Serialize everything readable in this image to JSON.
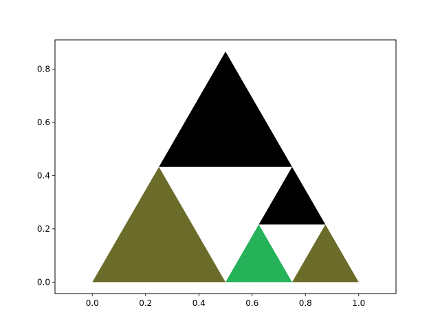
{
  "chart_data": {
    "type": "area",
    "title": "",
    "xlabel": "",
    "ylabel": "",
    "xlim": [
      -0.14,
      1.14
    ],
    "ylim": [
      -0.043,
      0.91
    ],
    "grid": false,
    "xticks": [
      0.0,
      0.2,
      0.4,
      0.6,
      0.8,
      1.0
    ],
    "xtick_labels": [
      "0.0",
      "0.2",
      "0.4",
      "0.6",
      "0.8",
      "1.0"
    ],
    "yticks": [
      0.0,
      0.2,
      0.4,
      0.6,
      0.8
    ],
    "ytick_labels": [
      "0.0",
      "0.2",
      "0.4",
      "0.6",
      "0.8"
    ],
    "triangles": [
      {
        "color": "#000000",
        "points": [
          [
            0.25,
            0.433
          ],
          [
            0.75,
            0.433
          ],
          [
            0.5,
            0.866
          ]
        ]
      },
      {
        "color": "#6b6b2a",
        "points": [
          [
            0.0,
            0.0
          ],
          [
            0.5,
            0.0
          ],
          [
            0.25,
            0.433
          ]
        ]
      },
      {
        "color": "#000000",
        "points": [
          [
            0.625,
            0.2165
          ],
          [
            0.875,
            0.2165
          ],
          [
            0.75,
            0.433
          ]
        ]
      },
      {
        "color": "#25b258",
        "points": [
          [
            0.5,
            0.0
          ],
          [
            0.75,
            0.0
          ],
          [
            0.625,
            0.2165
          ]
        ]
      },
      {
        "color": "#6b6b2a",
        "points": [
          [
            0.75,
            0.0
          ],
          [
            1.0,
            0.0
          ],
          [
            0.875,
            0.2165
          ]
        ]
      }
    ]
  }
}
